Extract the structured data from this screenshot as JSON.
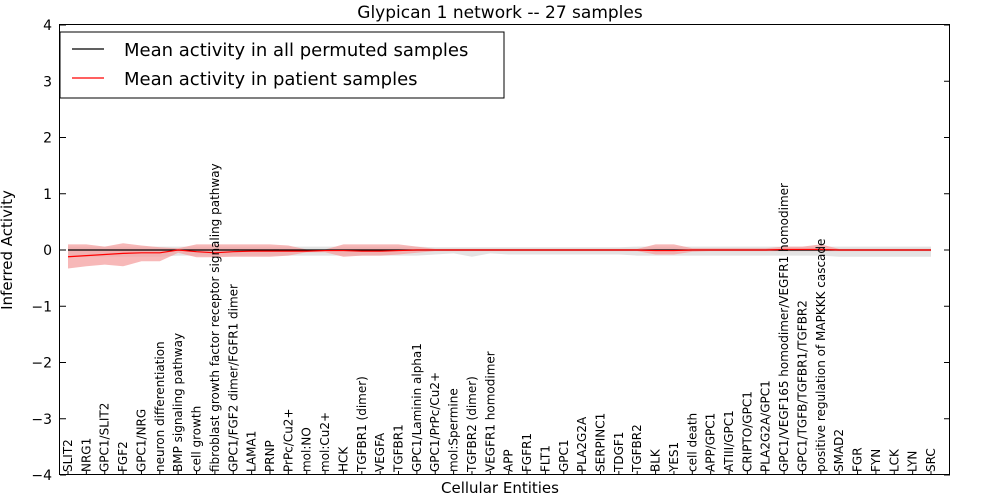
{
  "chart_data": {
    "type": "line",
    "title": "Glypican 1 network -- 27 samples",
    "xlabel": "Cellular Entities",
    "ylabel": "Inferred Activity",
    "ylim": [
      -4,
      4
    ],
    "yticks": [
      -4,
      -3,
      -2,
      -1,
      0,
      1,
      2,
      3,
      4
    ],
    "grid": false,
    "legend_position": "top-left",
    "categories": [
      "SLIT2",
      "NRG1",
      "GPC1/SLIT2",
      "FGF2",
      "GPC1/NRG",
      "neuron differentiation",
      "BMP signaling pathway",
      "cell growth",
      "fibroblast growth factor receptor signaling pathway",
      "GPC1/FGF2 dimer/FGFR1 dimer",
      "LAMA1",
      "PRNP",
      "PrPc/Cu2+",
      "mol:NO",
      "mol:Cu2+",
      "HCK",
      "TGFBR1 (dimer)",
      "VEGFA",
      "TGFBR1",
      "GPC1/Laminin alpha1",
      "GPC1/PrPc/Cu2+",
      "mol:Spermine",
      "TGFBR2 (dimer)",
      "VEGFR1 homodimer",
      "APP",
      "FGFR1",
      "FLT1",
      "GPC1",
      "PLA2G2A",
      "SERPINC1",
      "TDGF1",
      "TGFBR2",
      "BLK",
      "YES1",
      "cell death",
      "APP/GPC1",
      "ATIII/GPC1",
      "CRIPTO/GPC1",
      "PLA2G2A/GPC1",
      "GPC1/VEGF165 homodimer/VEGFR1 homodimer",
      "GPC1/TGFB/TGFBR1/TGFBR2",
      "positive regulation of MAPKKK cascade",
      "SMAD2",
      "FGR",
      "FYN",
      "LCK",
      "LYN",
      "SRC"
    ],
    "series": [
      {
        "name": "Mean activity in all permuted samples",
        "color": "#000000",
        "values": [
          0,
          0,
          0,
          0,
          0,
          0,
          0,
          0,
          0,
          0,
          0,
          0,
          0,
          0,
          0,
          0,
          0,
          0,
          0,
          0,
          0,
          0,
          0,
          0,
          0,
          0,
          0,
          0,
          0,
          0,
          0,
          0,
          0,
          0,
          0,
          0,
          0,
          0,
          0,
          0,
          0,
          0,
          0,
          0,
          0,
          0,
          0,
          0
        ],
        "band_low": [
          -0.12,
          -0.12,
          -0.12,
          -0.12,
          -0.12,
          -0.12,
          -0.1,
          -0.1,
          -0.1,
          -0.1,
          -0.1,
          -0.1,
          -0.1,
          -0.1,
          -0.1,
          -0.1,
          -0.1,
          -0.1,
          -0.1,
          -0.1,
          -0.08,
          -0.06,
          -0.12,
          -0.06,
          -0.08,
          -0.08,
          -0.08,
          -0.08,
          -0.08,
          -0.08,
          -0.08,
          -0.1,
          -0.1,
          -0.1,
          -0.1,
          -0.1,
          -0.1,
          -0.1,
          -0.1,
          -0.1,
          -0.1,
          -0.1,
          -0.12,
          -0.12,
          -0.12,
          -0.12,
          -0.12,
          -0.12
        ],
        "band_high": [
          0.06,
          0.06,
          0.06,
          0.06,
          0.06,
          0.06,
          0.06,
          0.06,
          0.06,
          0.06,
          0.06,
          0.06,
          0.06,
          0.06,
          0.06,
          0.06,
          0.06,
          0.06,
          0.06,
          0.06,
          0.05,
          0.05,
          0.05,
          0.05,
          0.05,
          0.05,
          0.05,
          0.05,
          0.05,
          0.05,
          0.05,
          0.06,
          0.06,
          0.06,
          0.06,
          0.06,
          0.06,
          0.06,
          0.06,
          0.06,
          0.06,
          0.06,
          0.06,
          0.06,
          0.06,
          0.06,
          0.06,
          0.06
        ]
      },
      {
        "name": "Mean activity in patient samples",
        "color": "#ff0000",
        "band_color": "#f4a0a0",
        "values": [
          -0.12,
          -0.1,
          -0.08,
          -0.06,
          -0.05,
          -0.05,
          0,
          -0.03,
          -0.05,
          -0.03,
          -0.02,
          -0.02,
          -0.02,
          -0.02,
          -0.01,
          -0.01,
          -0.02,
          -0.02,
          -0.01,
          0,
          0,
          0,
          0,
          0,
          0,
          0,
          0,
          0,
          0,
          0,
          0,
          0,
          -0.01,
          -0.01,
          0,
          0,
          0,
          0,
          0,
          0.01,
          0.01,
          0.01,
          0,
          0,
          0,
          0,
          0,
          0
        ],
        "band_low": [
          -0.33,
          -0.29,
          -0.26,
          -0.29,
          -0.2,
          -0.2,
          -0.05,
          -0.13,
          -0.13,
          -0.12,
          -0.12,
          -0.12,
          -0.1,
          -0.04,
          -0.04,
          -0.12,
          -0.1,
          -0.1,
          -0.08,
          -0.05,
          -0.02,
          -0.02,
          -0.02,
          -0.02,
          -0.02,
          -0.02,
          -0.02,
          -0.02,
          -0.02,
          -0.02,
          -0.02,
          -0.02,
          -0.08,
          -0.08,
          -0.03,
          -0.02,
          -0.02,
          -0.02,
          -0.02,
          -0.02,
          -0.02,
          -0.02,
          -0.02,
          -0.02,
          -0.02,
          -0.02,
          -0.02,
          -0.02
        ],
        "band_high": [
          0.1,
          0.1,
          0.06,
          0.12,
          0.08,
          0.05,
          0.03,
          0.1,
          0.1,
          0.1,
          0.1,
          0.1,
          0.08,
          0.01,
          0.01,
          0.1,
          0.1,
          0.1,
          0.1,
          0.06,
          0.02,
          0.02,
          0.02,
          0.02,
          0.02,
          0.02,
          0.02,
          0.02,
          0.02,
          0.02,
          0.02,
          0.02,
          0.1,
          0.1,
          0.03,
          0.03,
          0.03,
          0.03,
          0.03,
          0.06,
          0.06,
          0.1,
          0.02,
          0.02,
          0.02,
          0.02,
          0.02,
          0.02
        ]
      }
    ]
  }
}
